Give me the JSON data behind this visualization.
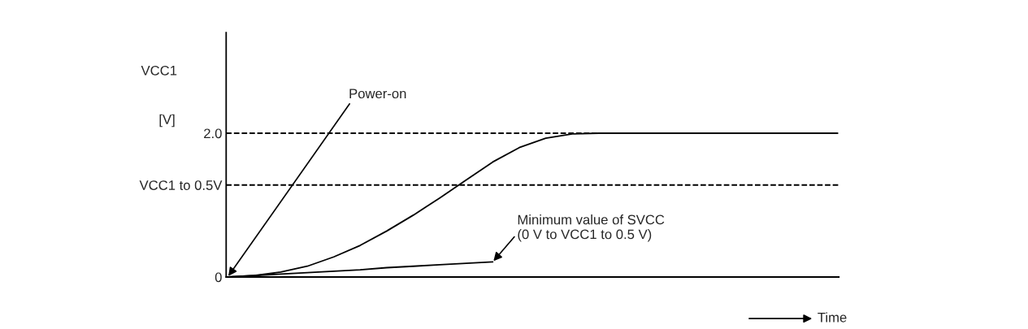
{
  "chart_data": {
    "type": "line",
    "ylabel": "VCC1",
    "categories": [
      null,
      null,
      null,
      null,
      null,
      null,
      null,
      null,
      null,
      null,
      null,
      null,
      null,
      null,
      null,
      null,
      null,
      null,
      null,
      null,
      null,
      null,
      null,
      null
    ],
    "series": [
      {
        "color": "#000000",
        "values": [
          0,
          0.02,
          0.07,
          0.15,
          0.28,
          0.44,
          0.64,
          0.86,
          1.1,
          1.35,
          1.6,
          1.8,
          1.93,
          1.99,
          2.0,
          2.0,
          2.0,
          2.0,
          2.0,
          2.0,
          2.0,
          2.0,
          2.0,
          2.0
        ]
      },
      {
        "color": "#000000",
        "values": [
          0,
          0.02,
          0.04,
          0.06,
          0.08,
          0.1,
          0.13,
          0.15,
          0.17,
          0.19,
          0.21,
          null,
          null,
          null,
          null,
          null,
          null,
          null,
          null,
          null,
          null,
          null,
          null,
          null
        ]
      }
    ],
    "ylim": [
      0,
      3.4
    ],
    "yticks": [
      0,
      {
        "value": 1.28,
        "label": "VCC1 to 0.5V"
      },
      {
        "value": 2.0,
        "label": "2.0"
      }
    ],
    "ref_lines": [
      {
        "axis": "y",
        "value": 2.0,
        "color": "#000000",
        "line_style": "dashed"
      },
      {
        "axis": "y",
        "value": 1.28,
        "color": "#000000",
        "line_style": "dashed"
      }
    ],
    "xlabel": "Time",
    "annotations": [
      "[V]",
      "Power-on",
      "Minimum value of SVCC\n(0 V to VCC1 to 0.5 V)"
    ],
    "tick_labels": "y",
    "grid": false,
    "marker": "none",
    "line_style": "solid"
  }
}
